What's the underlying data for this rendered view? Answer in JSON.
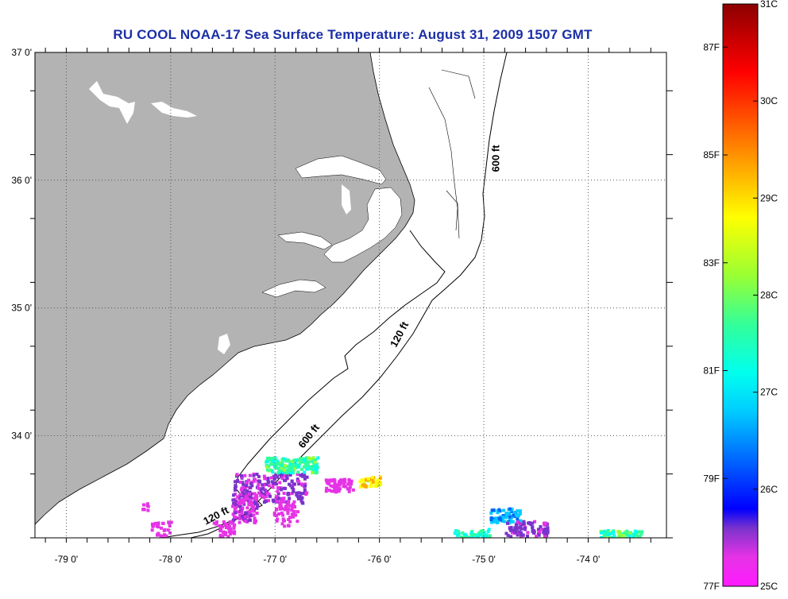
{
  "title": "RU COOL  NOAA-17  Sea Surface Temperature:  August 31, 2009 1507 GMT",
  "chart_data": {
    "type": "heatmap",
    "title": "RU COOL  NOAA-17  Sea Surface Temperature:  August 31, 2009 1507 GMT",
    "xlim": [
      -79.3,
      -73.25
    ],
    "ylim": [
      33.2,
      37.0
    ],
    "x_ticks": [
      {
        "value": -79,
        "label": "-79 0'"
      },
      {
        "value": -78,
        "label": "-78 0'"
      },
      {
        "value": -77,
        "label": "-77 0'"
      },
      {
        "value": -76,
        "label": "-76 0'"
      },
      {
        "value": -75,
        "label": "-75 0'"
      },
      {
        "value": -74,
        "label": "-74 0'"
      }
    ],
    "y_ticks": [
      {
        "value": 37,
        "label": "37 0'"
      },
      {
        "value": 36,
        "label": "36 0'"
      },
      {
        "value": 35,
        "label": "35 0'"
      },
      {
        "value": 34,
        "label": "34 0'"
      }
    ],
    "grid": "dotted",
    "contours": [
      {
        "label": "600 ft",
        "lon": -74.85,
        "lat": 36.17
      },
      {
        "label": "120 ft",
        "lon": -75.78,
        "lat": 34.78
      },
      {
        "label": "600 ft",
        "lon": -76.65,
        "lat": 33.98
      },
      {
        "label": "120 ft",
        "lon": -77.55,
        "lat": 33.35
      }
    ],
    "colorbar": {
      "celsius_range": [
        25,
        31
      ],
      "fahrenheit_range": [
        77,
        87.8
      ],
      "celsius_ticks": [
        {
          "value": 31,
          "label": "31C"
        },
        {
          "value": 30,
          "label": "30C"
        },
        {
          "value": 29,
          "label": "29C"
        },
        {
          "value": 28,
          "label": "28C"
        },
        {
          "value": 27,
          "label": "27C"
        },
        {
          "value": 26,
          "label": "26C"
        },
        {
          "value": 25,
          "label": "25C"
        }
      ],
      "fahrenheit_ticks": [
        {
          "value": 87,
          "label": "87F"
        },
        {
          "value": 85,
          "label": "85F"
        },
        {
          "value": 83,
          "label": "83F"
        },
        {
          "value": 81,
          "label": "81F"
        },
        {
          "value": 79,
          "label": "79F"
        },
        {
          "value": 77,
          "label": "77F"
        }
      ],
      "stops": [
        {
          "value": 25,
          "color": "#ff1aff"
        },
        {
          "value": 25.3,
          "color": "#e633e6"
        },
        {
          "value": 25.6,
          "color": "#7a33cc"
        },
        {
          "value": 25.8,
          "color": "#0000ff"
        },
        {
          "value": 26.3,
          "color": "#0066ff"
        },
        {
          "value": 26.8,
          "color": "#00ccff"
        },
        {
          "value": 27.2,
          "color": "#00ffee"
        },
        {
          "value": 27.7,
          "color": "#33ff99"
        },
        {
          "value": 28.2,
          "color": "#99ff33"
        },
        {
          "value": 28.8,
          "color": "#ffff00"
        },
        {
          "value": 29.3,
          "color": "#ffaa00"
        },
        {
          "value": 29.9,
          "color": "#ff4400"
        },
        {
          "value": 30.3,
          "color": "#ff0000"
        },
        {
          "value": 31,
          "color": "#8c0000"
        }
      ]
    },
    "colors": {
      "land": "#b3b3b3",
      "ocean": "#ffffff",
      "title": "#1b2fa6"
    }
  }
}
